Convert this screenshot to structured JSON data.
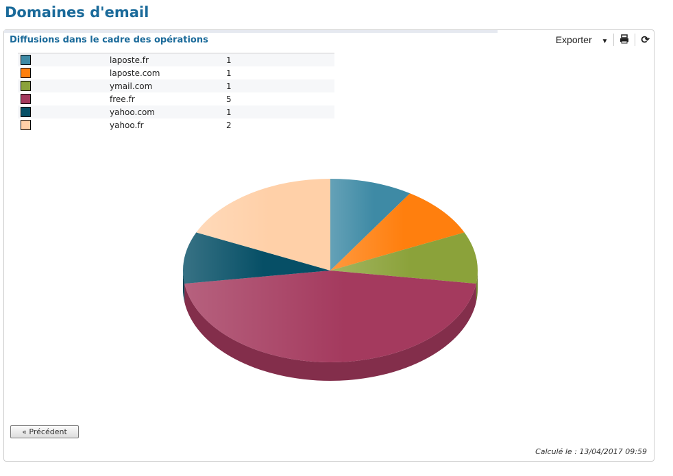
{
  "page_title": "Domaines d'email",
  "panel": {
    "title": "Diffusions dans le cadre des opérations",
    "export_label": "Exporter",
    "prev_label": "« Précédent",
    "computed": "Calculé le : 13/04/2017 09:59"
  },
  "icons": [
    "caret-down-icon",
    "print-icon",
    "refresh-icon"
  ],
  "chart_data": {
    "type": "pie",
    "title": "Diffusions dans le cadre des opérations",
    "categories": [
      "laposte.fr",
      "laposte.com",
      "ymail.com",
      "free.fr",
      "yahoo.com",
      "yahoo.fr"
    ],
    "values": [
      1,
      1,
      1,
      5,
      1,
      2
    ],
    "colors": [
      "#3e8aa5",
      "#ff7f0e",
      "#8ba23a",
      "#a43a5e",
      "#064f66",
      "#ffd0a8"
    ],
    "legend_placement": "top-left"
  }
}
